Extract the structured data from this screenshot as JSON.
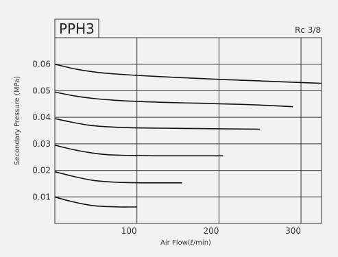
{
  "chart_data": {
    "type": "line",
    "title": "PPH3",
    "subtitle": "Rc 3/8",
    "xlabel": "Air Flow(ℓ/min)",
    "ylabel": "Secondary Pressure (MPa)",
    "xlim": [
      0,
      325
    ],
    "ylim": [
      0,
      0.07
    ],
    "xticks": [
      "100",
      "200",
      "300"
    ],
    "xtick_values": [
      100,
      200,
      300
    ],
    "yticks": [
      "0.01",
      "0.02",
      "0.03",
      "0.04",
      "0.05",
      "0.06"
    ],
    "ytick_values": [
      0.01,
      0.02,
      0.03,
      0.04,
      0.05,
      0.06
    ],
    "grid": true,
    "colors": {
      "line": "#111111",
      "grid": "#333333",
      "background": "#f2f2f2"
    },
    "series": [
      {
        "x": [
          0,
          10,
          20,
          30,
          40,
          50,
          60,
          70,
          80,
          90,
          100
        ],
        "y": [
          0.01,
          0.0091,
          0.0083,
          0.0076,
          0.007,
          0.0066,
          0.0064,
          0.0063,
          0.0062,
          0.0062,
          0.0062
        ]
      },
      {
        "x": [
          0,
          15,
          30,
          45,
          60,
          75,
          90,
          105,
          120,
          135,
          155
        ],
        "y": [
          0.0195,
          0.0183,
          0.0172,
          0.0163,
          0.0158,
          0.0155,
          0.0154,
          0.0153,
          0.0153,
          0.0153,
          0.0153
        ]
      },
      {
        "x": [
          0,
          20,
          40,
          60,
          80,
          100,
          120,
          140,
          160,
          180,
          205
        ],
        "y": [
          0.0295,
          0.028,
          0.0268,
          0.026,
          0.0257,
          0.0256,
          0.0255,
          0.0255,
          0.0255,
          0.0255,
          0.0255
        ]
      },
      {
        "x": [
          0,
          20,
          40,
          60,
          80,
          100,
          130,
          160,
          190,
          220,
          250
        ],
        "y": [
          0.0395,
          0.0382,
          0.0371,
          0.0365,
          0.0362,
          0.036,
          0.0359,
          0.0358,
          0.0357,
          0.0356,
          0.0355
        ]
      },
      {
        "x": [
          0,
          25,
          50,
          75,
          100,
          125,
          150,
          175,
          200,
          225,
          250,
          290
        ],
        "y": [
          0.0495,
          0.048,
          0.047,
          0.0464,
          0.046,
          0.0457,
          0.0455,
          0.0453,
          0.0451,
          0.0449,
          0.0446,
          0.044
        ]
      },
      {
        "x": [
          0,
          25,
          50,
          75,
          100,
          150,
          200,
          250,
          300,
          325
        ],
        "y": [
          0.06,
          0.0582,
          0.057,
          0.0563,
          0.0558,
          0.055,
          0.0543,
          0.0537,
          0.0531,
          0.0528
        ]
      }
    ]
  }
}
